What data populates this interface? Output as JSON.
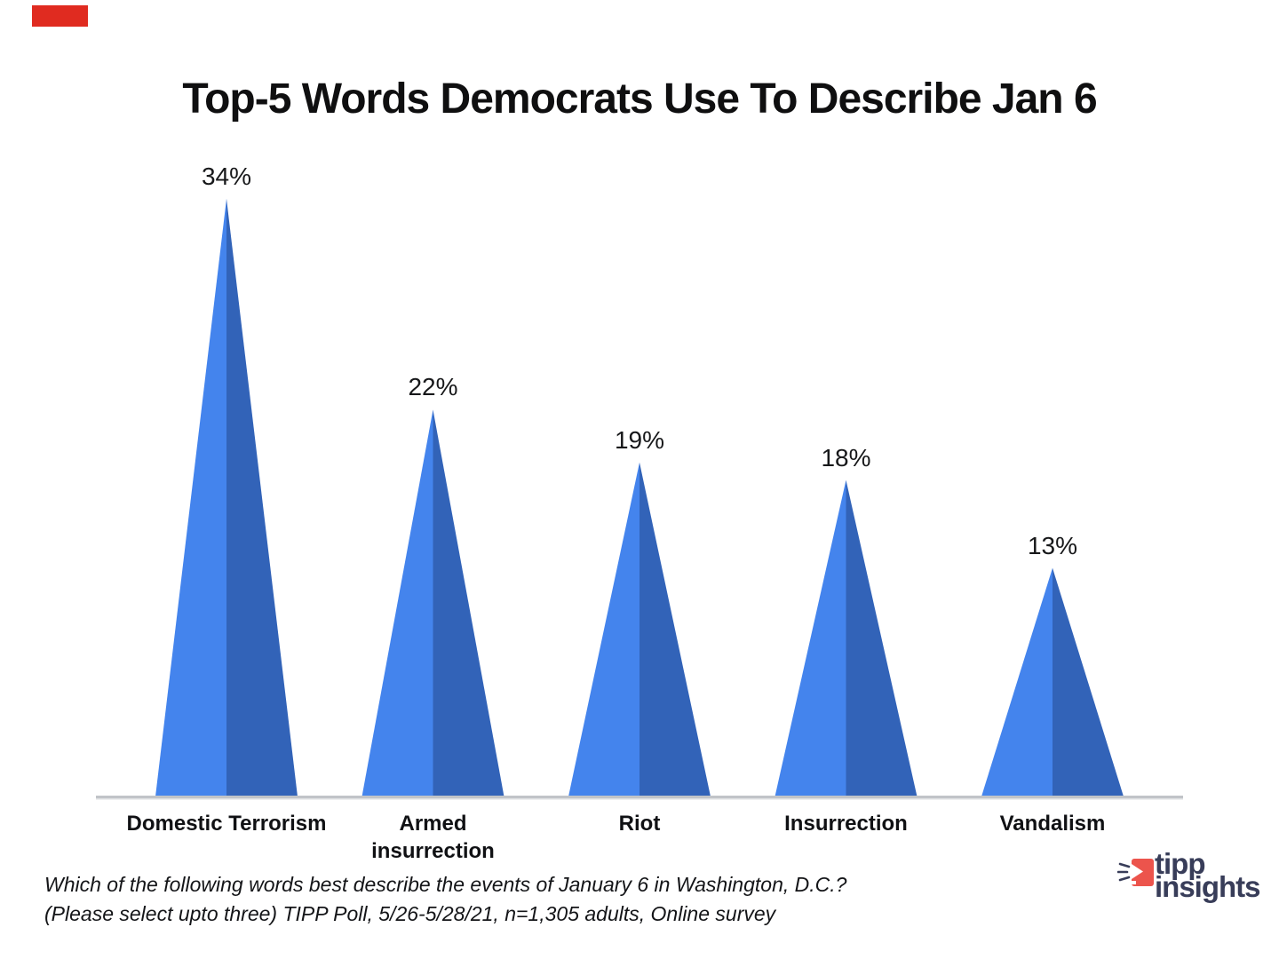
{
  "header": {
    "title": "Top-5 Words Democrats Use To Describe Jan 6"
  },
  "decorations": {
    "corner_bar_color": "#E02B20"
  },
  "chart_data": {
    "type": "bar",
    "bar_shape": "triangle-pyramid",
    "title": "Top-5 Words Democrats Use To Describe Jan 6",
    "categories": [
      "Domestic Terrorism",
      "Armed\ninsurrection",
      "Riot",
      "Insurrection",
      "Vandalism"
    ],
    "values": [
      34,
      22,
      19,
      18,
      13
    ],
    "value_labels": [
      "34%",
      "22%",
      "19%",
      "18%",
      "13%"
    ],
    "ylim": [
      0,
      35
    ],
    "grid": false,
    "legend": false,
    "xlabel": "",
    "ylabel": "",
    "axis_line_color": "#C1C4C8",
    "axis_line_shadow": "#DFE1E3",
    "bar_color_left": "#4484ED",
    "bar_color_right": "#3263B8",
    "value_label_color": "#17181A",
    "category_label_color": "#101114"
  },
  "footer": {
    "line1": "Which of the following words best describe the events of January 6 in Washington, D.C.?",
    "line2": "(Please select upto three) TIPP Poll, 5/26-5/28/21, n=1,305 adults, Online survey"
  },
  "logo": {
    "line1": "tipp",
    "line2": "insights",
    "text_color": "#383D59",
    "icon_color": "#EC544C"
  }
}
